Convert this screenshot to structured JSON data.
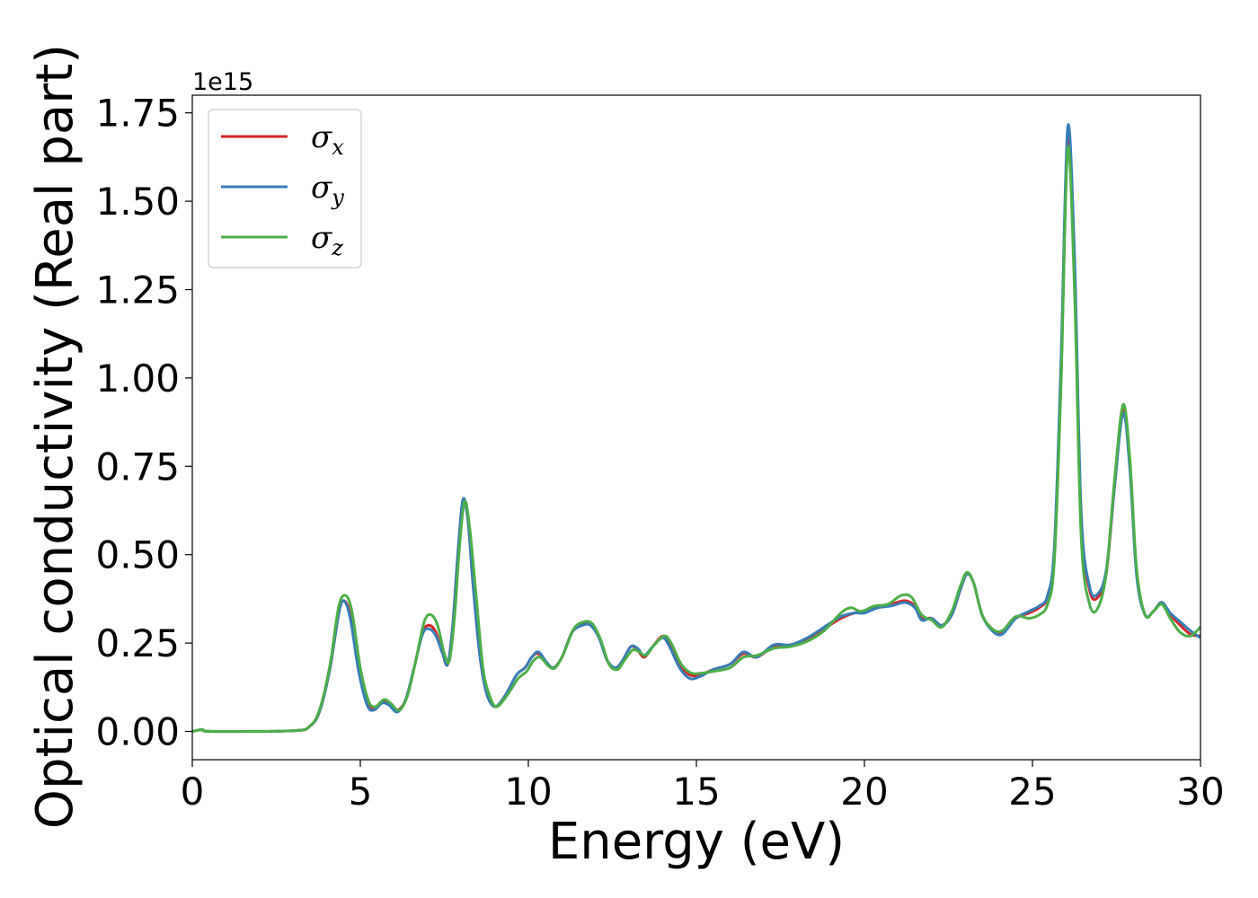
{
  "chart_data": {
    "type": "line",
    "xlabel": "Energy (eV)",
    "ylabel": "Optical conductivity (Real part)",
    "y_offset_label": "1e15",
    "y_scale": 1000000000000000.0,
    "xlim": [
      0,
      30
    ],
    "ylim": [
      -0.08,
      1.8
    ],
    "x_ticks": [
      0,
      5,
      10,
      15,
      20,
      25,
      30
    ],
    "x_tick_labels": [
      "0",
      "5",
      "10",
      "15",
      "20",
      "25",
      "30"
    ],
    "y_ticks": [
      0.0,
      0.25,
      0.5,
      0.75,
      1.0,
      1.25,
      1.5,
      1.75
    ],
    "y_tick_labels": [
      "0.00",
      "0.25",
      "0.50",
      "0.75",
      "1.00",
      "1.25",
      "1.50",
      "1.75"
    ],
    "grid": false,
    "legend_position": "top-left",
    "series": [
      {
        "name": "σx",
        "legend_main": "σ",
        "legend_sub": "x",
        "color": "#d62728",
        "points": [
          [
            0,
            0
          ],
          [
            0.3,
            0.005
          ],
          [
            0.6,
            0
          ],
          [
            3,
            0.002
          ],
          [
            3.5,
            0.015
          ],
          [
            3.8,
            0.06
          ],
          [
            4.1,
            0.18
          ],
          [
            4.35,
            0.33
          ],
          [
            4.5,
            0.37
          ],
          [
            4.7,
            0.33
          ],
          [
            4.95,
            0.18
          ],
          [
            5.2,
            0.08
          ],
          [
            5.4,
            0.065
          ],
          [
            5.65,
            0.085
          ],
          [
            5.85,
            0.075
          ],
          [
            6.1,
            0.06
          ],
          [
            6.35,
            0.09
          ],
          [
            6.6,
            0.18
          ],
          [
            6.85,
            0.28
          ],
          [
            7.05,
            0.3
          ],
          [
            7.25,
            0.28
          ],
          [
            7.45,
            0.22
          ],
          [
            7.6,
            0.19
          ],
          [
            7.75,
            0.3
          ],
          [
            7.9,
            0.5
          ],
          [
            8.05,
            0.65
          ],
          [
            8.2,
            0.6
          ],
          [
            8.35,
            0.42
          ],
          [
            8.55,
            0.22
          ],
          [
            8.75,
            0.11
          ],
          [
            9.0,
            0.07
          ],
          [
            9.3,
            0.1
          ],
          [
            9.65,
            0.16
          ],
          [
            9.9,
            0.18
          ],
          [
            10.1,
            0.21
          ],
          [
            10.3,
            0.22
          ],
          [
            10.55,
            0.19
          ],
          [
            10.75,
            0.18
          ],
          [
            11.0,
            0.21
          ],
          [
            11.3,
            0.28
          ],
          [
            11.6,
            0.305
          ],
          [
            11.85,
            0.305
          ],
          [
            12.1,
            0.27
          ],
          [
            12.35,
            0.2
          ],
          [
            12.6,
            0.18
          ],
          [
            12.8,
            0.2
          ],
          [
            13.05,
            0.24
          ],
          [
            13.25,
            0.23
          ],
          [
            13.45,
            0.21
          ],
          [
            13.7,
            0.24
          ],
          [
            14.0,
            0.27
          ],
          [
            14.2,
            0.25
          ],
          [
            14.5,
            0.19
          ],
          [
            14.8,
            0.16
          ],
          [
            15.1,
            0.16
          ],
          [
            15.5,
            0.175
          ],
          [
            16.0,
            0.19
          ],
          [
            16.4,
            0.22
          ],
          [
            16.8,
            0.21
          ],
          [
            17.3,
            0.24
          ],
          [
            17.8,
            0.245
          ],
          [
            18.3,
            0.26
          ],
          [
            18.8,
            0.29
          ],
          [
            19.3,
            0.32
          ],
          [
            19.7,
            0.335
          ],
          [
            20.0,
            0.34
          ],
          [
            20.4,
            0.35
          ],
          [
            20.8,
            0.36
          ],
          [
            21.2,
            0.37
          ],
          [
            21.5,
            0.355
          ],
          [
            21.7,
            0.32
          ],
          [
            22.0,
            0.32
          ],
          [
            22.3,
            0.3
          ],
          [
            22.6,
            0.33
          ],
          [
            22.85,
            0.4
          ],
          [
            23.05,
            0.445
          ],
          [
            23.25,
            0.42
          ],
          [
            23.5,
            0.33
          ],
          [
            23.8,
            0.29
          ],
          [
            24.1,
            0.28
          ],
          [
            24.5,
            0.32
          ],
          [
            24.9,
            0.335
          ],
          [
            25.2,
            0.35
          ],
          [
            25.45,
            0.38
          ],
          [
            25.65,
            0.5
          ],
          [
            25.85,
            1.0
          ],
          [
            26.05,
            1.68
          ],
          [
            26.25,
            1.3
          ],
          [
            26.45,
            0.6
          ],
          [
            26.7,
            0.4
          ],
          [
            26.95,
            0.38
          ],
          [
            27.2,
            0.45
          ],
          [
            27.45,
            0.7
          ],
          [
            27.7,
            0.91
          ],
          [
            27.9,
            0.75
          ],
          [
            28.1,
            0.45
          ],
          [
            28.35,
            0.33
          ],
          [
            28.6,
            0.34
          ],
          [
            28.85,
            0.365
          ],
          [
            29.1,
            0.33
          ],
          [
            29.4,
            0.3
          ],
          [
            29.7,
            0.275
          ],
          [
            30.0,
            0.27
          ]
        ]
      },
      {
        "name": "σy",
        "legend_main": "σ",
        "legend_sub": "y",
        "color": "#377eb8",
        "points": [
          [
            0,
            0
          ],
          [
            0.3,
            0.005
          ],
          [
            0.6,
            0
          ],
          [
            3,
            0.002
          ],
          [
            3.5,
            0.015
          ],
          [
            3.8,
            0.06
          ],
          [
            4.1,
            0.18
          ],
          [
            4.35,
            0.33
          ],
          [
            4.5,
            0.37
          ],
          [
            4.7,
            0.32
          ],
          [
            4.95,
            0.17
          ],
          [
            5.2,
            0.075
          ],
          [
            5.4,
            0.06
          ],
          [
            5.65,
            0.08
          ],
          [
            5.85,
            0.075
          ],
          [
            6.1,
            0.055
          ],
          [
            6.35,
            0.09
          ],
          [
            6.6,
            0.18
          ],
          [
            6.85,
            0.275
          ],
          [
            7.05,
            0.29
          ],
          [
            7.25,
            0.27
          ],
          [
            7.45,
            0.22
          ],
          [
            7.6,
            0.19
          ],
          [
            7.75,
            0.3
          ],
          [
            7.9,
            0.5
          ],
          [
            8.05,
            0.655
          ],
          [
            8.2,
            0.6
          ],
          [
            8.35,
            0.42
          ],
          [
            8.55,
            0.22
          ],
          [
            8.75,
            0.11
          ],
          [
            9.0,
            0.07
          ],
          [
            9.3,
            0.1
          ],
          [
            9.65,
            0.16
          ],
          [
            9.9,
            0.18
          ],
          [
            10.1,
            0.21
          ],
          [
            10.3,
            0.225
          ],
          [
            10.55,
            0.195
          ],
          [
            10.75,
            0.18
          ],
          [
            11.0,
            0.21
          ],
          [
            11.3,
            0.28
          ],
          [
            11.6,
            0.3
          ],
          [
            11.85,
            0.3
          ],
          [
            12.1,
            0.265
          ],
          [
            12.35,
            0.2
          ],
          [
            12.6,
            0.18
          ],
          [
            12.8,
            0.2
          ],
          [
            13.05,
            0.24
          ],
          [
            13.25,
            0.235
          ],
          [
            13.45,
            0.215
          ],
          [
            13.7,
            0.24
          ],
          [
            14.0,
            0.265
          ],
          [
            14.2,
            0.24
          ],
          [
            14.5,
            0.18
          ],
          [
            14.8,
            0.15
          ],
          [
            15.1,
            0.155
          ],
          [
            15.5,
            0.175
          ],
          [
            16.0,
            0.19
          ],
          [
            16.4,
            0.225
          ],
          [
            16.8,
            0.21
          ],
          [
            17.3,
            0.245
          ],
          [
            17.8,
            0.245
          ],
          [
            18.3,
            0.265
          ],
          [
            18.8,
            0.295
          ],
          [
            19.3,
            0.325
          ],
          [
            19.7,
            0.335
          ],
          [
            20.0,
            0.335
          ],
          [
            20.4,
            0.35
          ],
          [
            20.8,
            0.355
          ],
          [
            21.2,
            0.365
          ],
          [
            21.5,
            0.35
          ],
          [
            21.7,
            0.315
          ],
          [
            22.0,
            0.32
          ],
          [
            22.3,
            0.3
          ],
          [
            22.6,
            0.33
          ],
          [
            22.85,
            0.4
          ],
          [
            23.05,
            0.445
          ],
          [
            23.25,
            0.42
          ],
          [
            23.5,
            0.33
          ],
          [
            23.8,
            0.285
          ],
          [
            24.1,
            0.275
          ],
          [
            24.5,
            0.32
          ],
          [
            24.9,
            0.34
          ],
          [
            25.2,
            0.355
          ],
          [
            25.45,
            0.385
          ],
          [
            25.65,
            0.52
          ],
          [
            25.85,
            1.05
          ],
          [
            26.05,
            1.71
          ],
          [
            26.25,
            1.35
          ],
          [
            26.45,
            0.62
          ],
          [
            26.7,
            0.41
          ],
          [
            26.95,
            0.39
          ],
          [
            27.2,
            0.46
          ],
          [
            27.45,
            0.7
          ],
          [
            27.7,
            0.9
          ],
          [
            27.9,
            0.74
          ],
          [
            28.1,
            0.44
          ],
          [
            28.35,
            0.33
          ],
          [
            28.6,
            0.34
          ],
          [
            28.85,
            0.365
          ],
          [
            29.1,
            0.335
          ],
          [
            29.4,
            0.31
          ],
          [
            29.7,
            0.285
          ],
          [
            30.0,
            0.265
          ]
        ]
      },
      {
        "name": "σz",
        "legend_main": "σ",
        "legend_sub": "z",
        "color": "#4daf4a",
        "points": [
          [
            0,
            0
          ],
          [
            0.3,
            0.005
          ],
          [
            0.6,
            0
          ],
          [
            3,
            0.002
          ],
          [
            3.5,
            0.015
          ],
          [
            3.8,
            0.065
          ],
          [
            4.1,
            0.19
          ],
          [
            4.35,
            0.35
          ],
          [
            4.55,
            0.385
          ],
          [
            4.75,
            0.34
          ],
          [
            5.0,
            0.18
          ],
          [
            5.25,
            0.085
          ],
          [
            5.45,
            0.07
          ],
          [
            5.7,
            0.09
          ],
          [
            5.9,
            0.08
          ],
          [
            6.15,
            0.06
          ],
          [
            6.4,
            0.1
          ],
          [
            6.65,
            0.2
          ],
          [
            6.9,
            0.31
          ],
          [
            7.1,
            0.33
          ],
          [
            7.3,
            0.3
          ],
          [
            7.5,
            0.22
          ],
          [
            7.65,
            0.2
          ],
          [
            7.8,
            0.32
          ],
          [
            7.95,
            0.52
          ],
          [
            8.1,
            0.65
          ],
          [
            8.25,
            0.58
          ],
          [
            8.45,
            0.38
          ],
          [
            8.65,
            0.18
          ],
          [
            8.85,
            0.1
          ],
          [
            9.05,
            0.07
          ],
          [
            9.35,
            0.1
          ],
          [
            9.7,
            0.15
          ],
          [
            9.95,
            0.17
          ],
          [
            10.15,
            0.2
          ],
          [
            10.35,
            0.21
          ],
          [
            10.6,
            0.185
          ],
          [
            10.8,
            0.18
          ],
          [
            11.05,
            0.22
          ],
          [
            11.35,
            0.29
          ],
          [
            11.65,
            0.31
          ],
          [
            11.9,
            0.305
          ],
          [
            12.15,
            0.26
          ],
          [
            12.4,
            0.19
          ],
          [
            12.65,
            0.175
          ],
          [
            12.85,
            0.2
          ],
          [
            13.1,
            0.23
          ],
          [
            13.3,
            0.225
          ],
          [
            13.5,
            0.215
          ],
          [
            13.75,
            0.245
          ],
          [
            14.05,
            0.27
          ],
          [
            14.25,
            0.25
          ],
          [
            14.55,
            0.19
          ],
          [
            14.85,
            0.165
          ],
          [
            15.15,
            0.165
          ],
          [
            15.5,
            0.17
          ],
          [
            16.0,
            0.18
          ],
          [
            16.4,
            0.21
          ],
          [
            16.8,
            0.215
          ],
          [
            17.3,
            0.235
          ],
          [
            17.8,
            0.24
          ],
          [
            18.3,
            0.255
          ],
          [
            18.8,
            0.285
          ],
          [
            19.3,
            0.335
          ],
          [
            19.6,
            0.35
          ],
          [
            19.9,
            0.34
          ],
          [
            20.3,
            0.355
          ],
          [
            20.7,
            0.36
          ],
          [
            21.1,
            0.385
          ],
          [
            21.4,
            0.38
          ],
          [
            21.7,
            0.33
          ],
          [
            22.0,
            0.315
          ],
          [
            22.3,
            0.295
          ],
          [
            22.6,
            0.34
          ],
          [
            22.85,
            0.41
          ],
          [
            23.05,
            0.45
          ],
          [
            23.25,
            0.42
          ],
          [
            23.5,
            0.33
          ],
          [
            23.8,
            0.29
          ],
          [
            24.1,
            0.285
          ],
          [
            24.5,
            0.325
          ],
          [
            24.9,
            0.32
          ],
          [
            25.2,
            0.33
          ],
          [
            25.45,
            0.36
          ],
          [
            25.65,
            0.48
          ],
          [
            25.85,
            0.98
          ],
          [
            26.05,
            1.65
          ],
          [
            26.25,
            1.25
          ],
          [
            26.45,
            0.55
          ],
          [
            26.7,
            0.36
          ],
          [
            26.95,
            0.35
          ],
          [
            27.2,
            0.45
          ],
          [
            27.45,
            0.72
          ],
          [
            27.7,
            0.925
          ],
          [
            27.9,
            0.77
          ],
          [
            28.1,
            0.46
          ],
          [
            28.35,
            0.33
          ],
          [
            28.6,
            0.34
          ],
          [
            28.85,
            0.36
          ],
          [
            29.1,
            0.32
          ],
          [
            29.4,
            0.28
          ],
          [
            29.7,
            0.27
          ],
          [
            30.0,
            0.295
          ]
        ]
      }
    ]
  }
}
